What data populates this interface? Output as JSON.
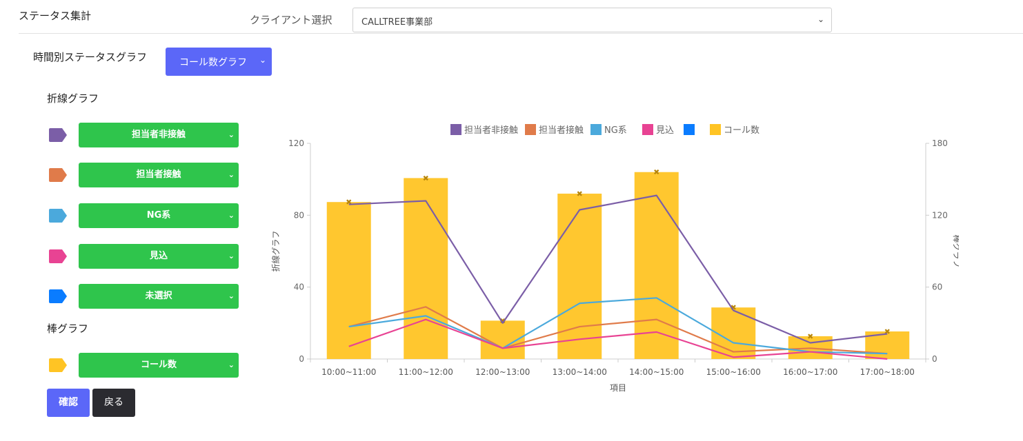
{
  "header": {
    "title": "ステータス集計",
    "client_label": "クライアント選択",
    "client_value": "CALLTREE事業部"
  },
  "graph": {
    "title": "時間別ステータスグラフ",
    "type_value": "コール数グラフ"
  },
  "line_section": {
    "label": "折線グラフ",
    "items": [
      {
        "label": "担当者非接触",
        "color": "#7b5ea7"
      },
      {
        "label": "担当者接触",
        "color": "#e07b4a"
      },
      {
        "label": "NG系",
        "color": "#4ba9dc"
      },
      {
        "label": "見込",
        "color": "#e84393"
      },
      {
        "label": "未選択",
        "color": "#0a7cff"
      }
    ]
  },
  "bar_section": {
    "label": "棒グラフ",
    "items": [
      {
        "label": "コール数",
        "color": "#ffc424"
      }
    ]
  },
  "buttons": {
    "confirm": "確認",
    "back": "戻る"
  },
  "icons": {
    "chevron": "chevron-down-icon",
    "tag": "tag-icon"
  },
  "chart_data": {
    "type": "bar",
    "categories": [
      "10:00~11:00",
      "11:00~12:00",
      "12:00~13:00",
      "13:00~14:00",
      "14:00~15:00",
      "15:00~16:00",
      "16:00~17:00",
      "17:00~18:00"
    ],
    "xlabel": "項目",
    "ylabel_left": "折線グラフ",
    "ylabel_right": "棒グラフ",
    "ylim_left": [
      0,
      120
    ],
    "ylim_right": [
      0,
      180
    ],
    "yticks_left": [
      "0",
      "40",
      "80",
      "120"
    ],
    "yticks_right": [
      "0",
      "60",
      "120",
      "180"
    ],
    "bar_series": [
      {
        "name": "コール数",
        "color": "#ffc424",
        "axis": "right",
        "values": [
          131,
          151,
          32,
          138,
          156,
          43,
          19,
          23
        ]
      }
    ],
    "line_series": [
      {
        "name": "担当者非接触",
        "color": "#7b5ea7",
        "axis": "left",
        "values": [
          86,
          88,
          20,
          83,
          91,
          27,
          9,
          14
        ]
      },
      {
        "name": "担当者接触",
        "color": "#e07b4a",
        "axis": "left",
        "values": [
          18,
          29,
          6,
          18,
          22,
          4,
          6,
          3
        ]
      },
      {
        "name": "NG系",
        "color": "#4ba9dc",
        "axis": "left",
        "values": [
          18,
          24,
          6,
          31,
          34,
          9,
          4,
          3
        ]
      },
      {
        "name": "見込",
        "color": "#e84393",
        "axis": "left",
        "values": [
          7,
          22,
          6,
          11,
          15,
          1,
          4,
          0
        ]
      }
    ],
    "legend": [
      {
        "name": "担当者非接触",
        "color": "#7b5ea7"
      },
      {
        "name": "担当者接触",
        "color": "#e07b4a"
      },
      {
        "name": "NG系",
        "color": "#4ba9dc"
      },
      {
        "name": "見込",
        "color": "#e84393"
      },
      {
        "name": "",
        "color": "#0a7cff"
      },
      {
        "name": "コール数",
        "color": "#ffc424"
      }
    ],
    "legend_position": "top-center",
    "grid": false
  }
}
